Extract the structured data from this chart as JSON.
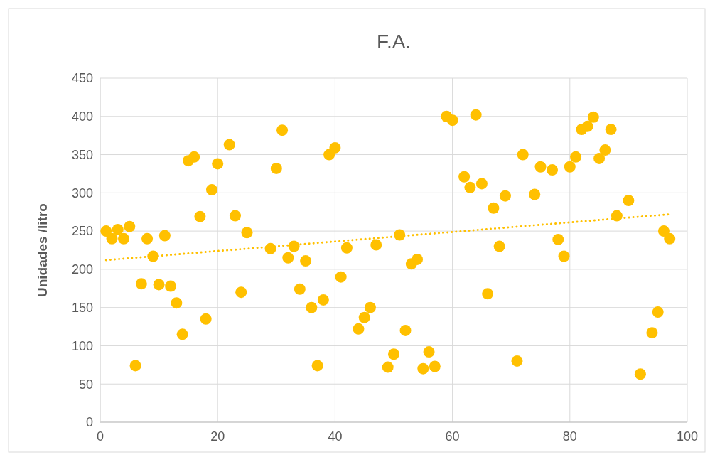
{
  "chart_data": {
    "type": "scatter",
    "title": "F.A.",
    "ylabel": "Unidades /litro",
    "xlim": [
      0,
      100
    ],
    "xticks": [
      0,
      20,
      40,
      60,
      80,
      100
    ],
    "ylim": [
      0,
      450
    ],
    "yticks": [
      0,
      50,
      100,
      150,
      200,
      250,
      300,
      350,
      400,
      450
    ],
    "grid": true,
    "marker": "circle",
    "series": [
      {
        "color": "#ffc000",
        "x": [
          1,
          2,
          3,
          4,
          5,
          6,
          7,
          8,
          9,
          10,
          11,
          12,
          13,
          14,
          15,
          16,
          17,
          18,
          19,
          20,
          22,
          23,
          24,
          25,
          29,
          30,
          31,
          32,
          33,
          34,
          35,
          36,
          37,
          38,
          39,
          40,
          41,
          42,
          44,
          45,
          46,
          47,
          49,
          50,
          51,
          52,
          53,
          54,
          55,
          56,
          57,
          59,
          60,
          62,
          63,
          64,
          65,
          66,
          67,
          68,
          69,
          71,
          72,
          74,
          75,
          77,
          78,
          79,
          80,
          81,
          82,
          83,
          84,
          85,
          86,
          87,
          88,
          90,
          92,
          94,
          95,
          96,
          97
        ],
        "values": [
          250,
          240,
          252,
          240,
          256,
          74,
          181,
          240,
          217,
          180,
          244,
          178,
          156,
          115,
          342,
          347,
          269,
          135,
          304,
          338,
          363,
          270,
          170,
          248,
          227,
          332,
          382,
          215,
          230,
          174,
          211,
          150,
          74,
          160,
          350,
          359,
          190,
          228,
          122,
          137,
          150,
          232,
          72,
          89,
          245,
          120,
          207,
          213,
          70,
          92,
          73,
          400,
          395,
          321,
          307,
          402,
          312,
          168,
          280,
          230,
          296,
          80,
          350,
          298,
          334,
          330,
          239,
          217,
          334,
          347,
          383,
          387,
          399,
          345,
          356,
          383,
          270,
          290,
          63,
          117,
          144,
          250,
          240
        ]
      },
      {
        "type": "line",
        "color": "#ffc000",
        "line_style": "dotted",
        "marker": "none",
        "x": [
          1,
          97
        ],
        "values": [
          212,
          272
        ]
      }
    ]
  }
}
